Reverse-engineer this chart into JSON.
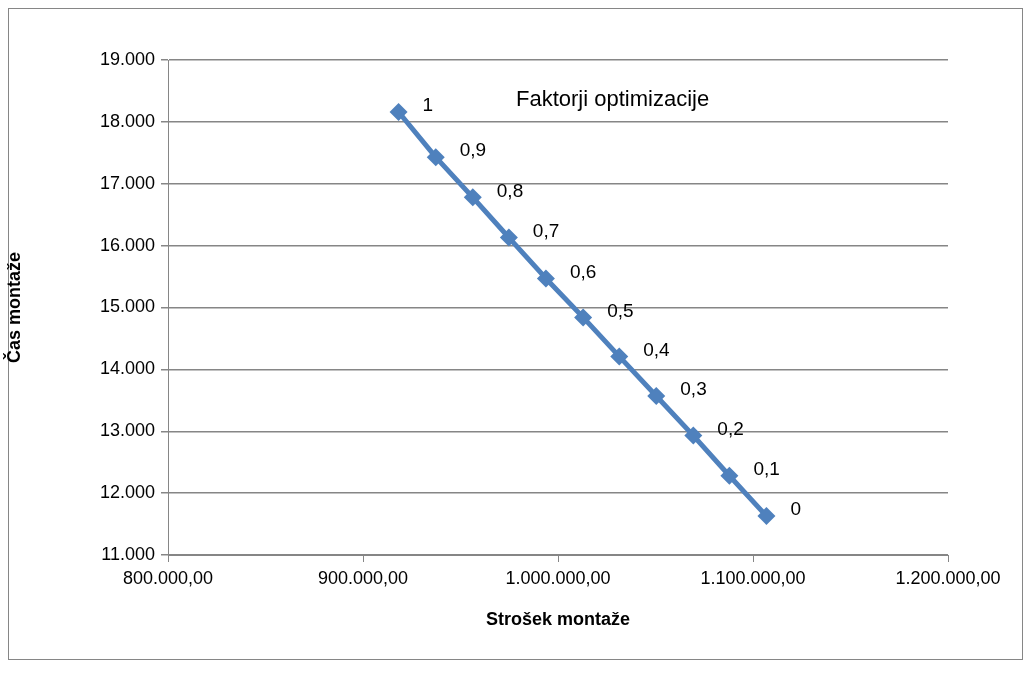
{
  "chart_data": {
    "type": "line",
    "title": "Faktorji optimizacije",
    "xlabel": "Strošek montaže",
    "ylabel": "Čas montaže",
    "x": [
      1106900,
      1087900,
      1069400,
      1050400,
      1031400,
      1012900,
      993800,
      974800,
      956300,
      937300,
      918250
    ],
    "series": [
      {
        "color": "#4f81bd",
        "values": [
          11630,
          12280,
          12930,
          13570,
          14210,
          14840,
          15470,
          16130,
          16780,
          17430,
          18160
        ]
      }
    ],
    "annotations": [
      {
        "text": "0",
        "x": 1106900,
        "y": 11630
      },
      {
        "text": "0,1",
        "x": 1087900,
        "y": 12280
      },
      {
        "text": "0,2",
        "x": 1069400,
        "y": 12930
      },
      {
        "text": "0,3",
        "x": 1050400,
        "y": 13570
      },
      {
        "text": "0,4",
        "x": 1031400,
        "y": 14210
      },
      {
        "text": "0,5",
        "x": 1012900,
        "y": 14840
      },
      {
        "text": "0,6",
        "x": 993800,
        "y": 15470
      },
      {
        "text": "0,7",
        "x": 974800,
        "y": 16130
      },
      {
        "text": "0,8",
        "x": 956300,
        "y": 16780
      },
      {
        "text": "0,9",
        "x": 937300,
        "y": 17430
      },
      {
        "text": "1",
        "x": 918250,
        "y": 18160
      }
    ],
    "xlim": [
      800000,
      1200000
    ],
    "xticks": [
      {
        "value": 800000,
        "label": "800.000,00"
      },
      {
        "value": 900000,
        "label": "900.000,00"
      },
      {
        "value": 1000000,
        "label": "1.000.000,00"
      },
      {
        "value": 1100000,
        "label": "1.100.000,00"
      },
      {
        "value": 1200000,
        "label": "1.200.000,00"
      }
    ],
    "ylim": [
      11000,
      19000
    ],
    "yticks": [
      {
        "value": 11000,
        "label": "11.000"
      },
      {
        "value": 12000,
        "label": "12.000"
      },
      {
        "value": 13000,
        "label": "13.000"
      },
      {
        "value": 14000,
        "label": "14.000"
      },
      {
        "value": 15000,
        "label": "15.000"
      },
      {
        "value": 16000,
        "label": "16.000"
      },
      {
        "value": 17000,
        "label": "17.000"
      },
      {
        "value": 18000,
        "label": "18.000"
      },
      {
        "value": 19000,
        "label": "19.000"
      }
    ],
    "grid": "y",
    "marker": "diamond",
    "line_style": "solid",
    "legend": false
  }
}
